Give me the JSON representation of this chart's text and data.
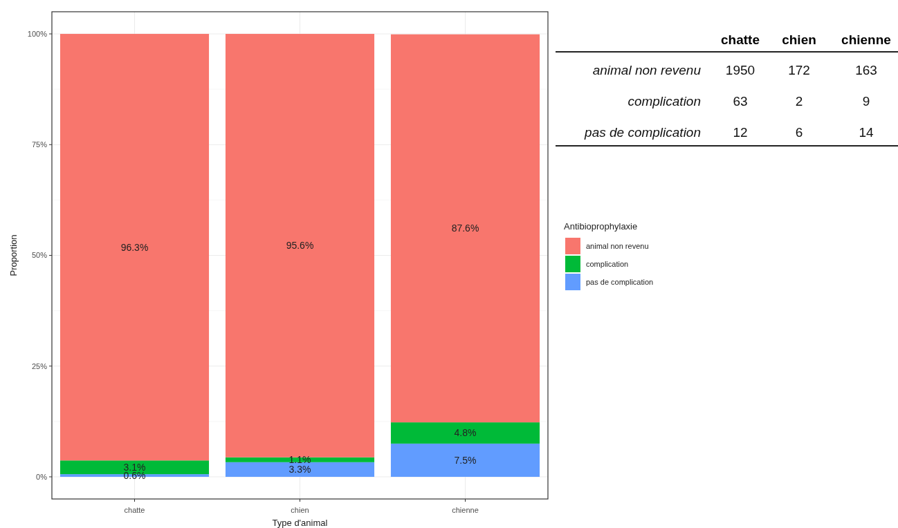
{
  "chart_data": [
    {
      "type": "bar",
      "stacked": true,
      "xlabel": "Type d'animal",
      "ylabel": "Proportion",
      "legend_title": "Antibioprophylaxie",
      "legend": "right",
      "grid": true,
      "categories": [
        "chatte",
        "chien",
        "chienne"
      ],
      "series": [
        {
          "name": "pas de complication",
          "color": "#619cff",
          "values": [
            0.6,
            3.3,
            7.5
          ],
          "value_labels": [
            "0.6%",
            "3.3%",
            "7.5%"
          ]
        },
        {
          "name": "complication",
          "color": "#00ba38",
          "values": [
            3.1,
            1.1,
            4.8
          ],
          "value_labels": [
            "3.1%",
            "1.1%",
            "4.8%"
          ]
        },
        {
          "name": "animal non revenu",
          "color": "#f8766d",
          "values": [
            96.3,
            95.6,
            87.6
          ],
          "value_labels": [
            "96.3%",
            "95.6%",
            "87.6%"
          ]
        }
      ],
      "ylim": [
        -5,
        105
      ],
      "yticks": [
        {
          "value": 0,
          "label": "0%"
        },
        {
          "value": 25,
          "label": "25%"
        },
        {
          "value": 50,
          "label": "50%"
        },
        {
          "value": 75,
          "label": "75%"
        },
        {
          "value": 100,
          "label": "100%"
        }
      ]
    },
    {
      "type": "other",
      "data_labels": true,
      "categories": [
        "chatte",
        "chien",
        "chienne"
      ],
      "series": [
        {
          "name": "animal non revenu",
          "values": [
            1950,
            172,
            163
          ]
        },
        {
          "name": "complication",
          "values": [
            63,
            2,
            9
          ]
        },
        {
          "name": "pas de complication",
          "values": [
            12,
            6,
            14
          ]
        }
      ]
    }
  ]
}
